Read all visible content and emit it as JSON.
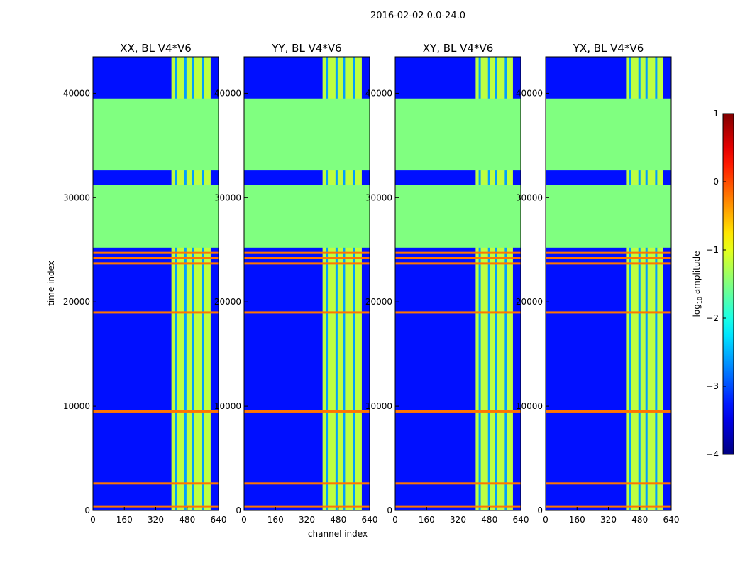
{
  "chart_data": {
    "type": "heatmap",
    "title": "2016-02-02 0.0-24.0",
    "xlabel": "channel index",
    "ylabel": "time index",
    "xlim": [
      0,
      640
    ],
    "ylim": [
      0,
      43500
    ],
    "xticks": [
      "0",
      "160",
      "320",
      "480",
      "640"
    ],
    "xtick_values": [
      0,
      160,
      320,
      480,
      640
    ],
    "yticks": [
      "0",
      "10000",
      "20000",
      "30000",
      "40000"
    ],
    "ytick_values": [
      0,
      10000,
      20000,
      30000,
      40000
    ],
    "panels": [
      {
        "title": "XX, BL V4*V6",
        "band_start": 400,
        "band_end": 600,
        "band_level": -1.2
      },
      {
        "title": "YY, BL V4*V6",
        "band_start": 400,
        "band_end": 600,
        "band_level": -1.2
      },
      {
        "title": "XY, BL V4*V6",
        "band_start": 410,
        "band_end": 600,
        "band_level": -1.2
      },
      {
        "title": "YX, BL V4*V6",
        "band_start": 410,
        "band_end": 600,
        "band_level": -1.2
      }
    ],
    "background_level": -3.3,
    "flagged_value": -1.5,
    "flagged_time_ranges": [
      [
        25200,
        31200
      ],
      [
        32600,
        39500
      ]
    ],
    "hot_rows": [
      400,
      2600,
      9500,
      19000,
      23700,
      24200,
      24700
    ],
    "colorbar": {
      "label": "log10 amplitude",
      "min": -4,
      "max": 1,
      "ticks": [
        "1",
        "0",
        "−1",
        "−2",
        "−3",
        "−4"
      ],
      "tick_values": [
        1,
        0,
        -1,
        -2,
        -3,
        -4
      ],
      "colormap": "jet"
    }
  }
}
